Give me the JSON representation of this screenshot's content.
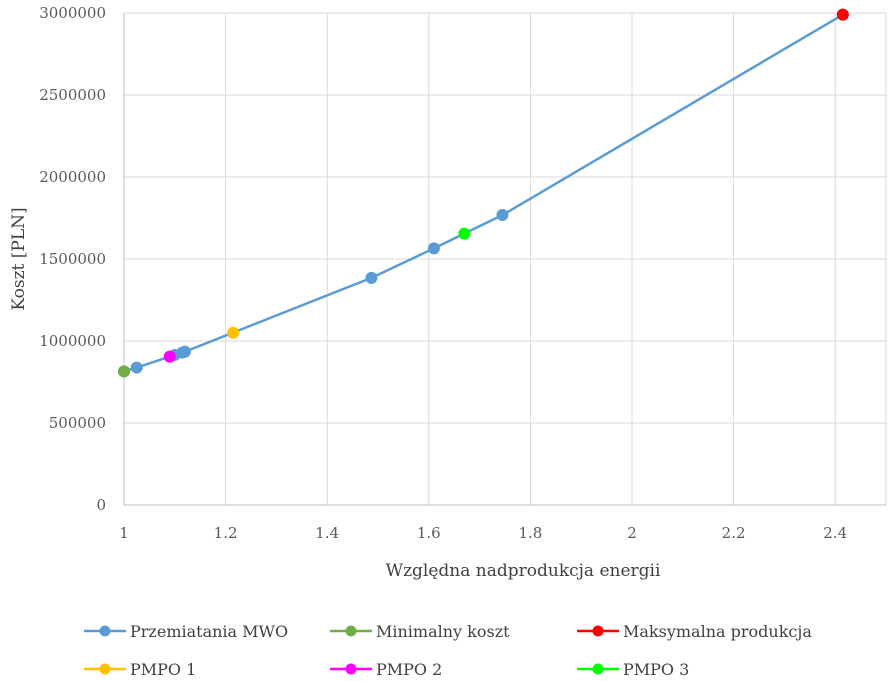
{
  "chart_data": {
    "type": "scatter",
    "title": "",
    "xlabel": "Względna nadprodukcja energii",
    "ylabel": "Koszt [PLN]",
    "xlim": [
      1,
      2.5
    ],
    "ylim": [
      0,
      3000000
    ],
    "x_ticks": [
      "1",
      "1.2",
      "1.4",
      "1.6",
      "1.8",
      "2",
      "2.2",
      "2.4"
    ],
    "y_ticks": [
      "0",
      "500000",
      "1000000",
      "1500000",
      "2000000",
      "2500000",
      "3000000"
    ],
    "grid": true,
    "legend_position": "bottom",
    "series": [
      {
        "name": "Przemiatania MWO",
        "color": "#5b9bd5",
        "line": true,
        "points": [
          [
            1.0,
            815000
          ],
          [
            1.025,
            838000
          ],
          [
            1.1,
            915000
          ],
          [
            1.115,
            930000
          ],
          [
            1.12,
            935000
          ],
          [
            1.487,
            1385000
          ],
          [
            1.61,
            1565000
          ],
          [
            1.745,
            1768000
          ],
          [
            2.415,
            2990000
          ]
        ]
      },
      {
        "name": "Minimalny koszt",
        "color": "#70ad47",
        "line": false,
        "points": [
          [
            1.0,
            815000
          ]
        ]
      },
      {
        "name": "Maksymalna produkcja",
        "color": "#ff0000",
        "line": false,
        "points": [
          [
            2.415,
            2990000
          ]
        ]
      },
      {
        "name": "PMPO 1",
        "color": "#ffc000",
        "line": false,
        "points": [
          [
            1.215,
            1050000
          ]
        ]
      },
      {
        "name": "PMPO 2",
        "color": "#ff00ff",
        "line": false,
        "points": [
          [
            1.09,
            905000
          ]
        ]
      },
      {
        "name": "PMPO 3",
        "color": "#00ff00",
        "line": false,
        "points": [
          [
            1.67,
            1655000
          ]
        ]
      }
    ]
  }
}
